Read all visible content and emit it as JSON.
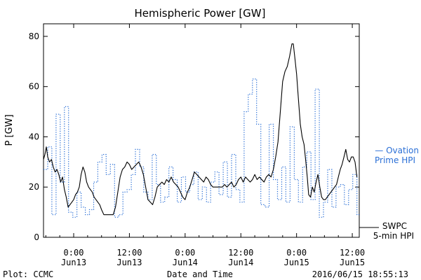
{
  "chart_data": {
    "type": "line",
    "title": "Hemispheric Power [GW]",
    "ylabel": "P [GW]",
    "xlabel": "Date and Time",
    "ylim": [
      0,
      85
    ],
    "yticks": [
      0,
      20,
      40,
      60,
      80
    ],
    "xlim": [
      -6.5,
      61.5
    ],
    "xticks": [
      {
        "x": 0,
        "line1": "0:00",
        "line2": "Jun13"
      },
      {
        "x": 12,
        "line1": "12:00",
        "line2": "Jun13"
      },
      {
        "x": 24,
        "line1": "0:00",
        "line2": "Jun14"
      },
      {
        "x": 36,
        "line1": "12:00",
        "line2": "Jun14"
      },
      {
        "x": 48,
        "line1": "0:00",
        "line2": "Jun15"
      },
      {
        "x": 60,
        "line1": "12:00",
        "line2": "Jun15"
      }
    ],
    "x_unit": "hours from 2016-06-13 00:00",
    "series": [
      {
        "name": "SWPC 5-min HPI",
        "label_line1": "SWPC",
        "label_line2": "5-min HPI",
        "color": "#000000",
        "style": "solid",
        "points": [
          [
            -6.5,
            31
          ],
          [
            -6.2,
            33
          ],
          [
            -5.9,
            36
          ],
          [
            -5.6,
            32
          ],
          [
            -5.2,
            30
          ],
          [
            -4.8,
            31
          ],
          [
            -4.4,
            28
          ],
          [
            -4.0,
            26
          ],
          [
            -3.6,
            27
          ],
          [
            -3.2,
            25
          ],
          [
            -2.8,
            22
          ],
          [
            -2.4,
            24
          ],
          [
            -2.0,
            19
          ],
          [
            -1.6,
            16
          ],
          [
            -1.2,
            12
          ],
          [
            -0.8,
            13
          ],
          [
            -0.4,
            14
          ],
          [
            0.0,
            15
          ],
          [
            0.4,
            17
          ],
          [
            0.8,
            18
          ],
          [
            1.2,
            20
          ],
          [
            1.6,
            25
          ],
          [
            2.0,
            28
          ],
          [
            2.4,
            26
          ],
          [
            2.8,
            22
          ],
          [
            3.2,
            20
          ],
          [
            3.6,
            19
          ],
          [
            4.0,
            18
          ],
          [
            4.4,
            16
          ],
          [
            4.8,
            15
          ],
          [
            5.2,
            14
          ],
          [
            5.6,
            13
          ],
          [
            6.0,
            11
          ],
          [
            6.5,
            9
          ],
          [
            7.0,
            9
          ],
          [
            7.5,
            9
          ],
          [
            8.0,
            9
          ],
          [
            8.5,
            9
          ],
          [
            9.0,
            12
          ],
          [
            9.5,
            18
          ],
          [
            10.0,
            24
          ],
          [
            10.5,
            27
          ],
          [
            11.0,
            28
          ],
          [
            11.5,
            30
          ],
          [
            12.0,
            29
          ],
          [
            12.5,
            27
          ],
          [
            13.0,
            28
          ],
          [
            13.5,
            29
          ],
          [
            14.0,
            30
          ],
          [
            14.5,
            28
          ],
          [
            15.0,
            25
          ],
          [
            15.5,
            20
          ],
          [
            16.0,
            15
          ],
          [
            16.5,
            14
          ],
          [
            17.0,
            13
          ],
          [
            17.5,
            16
          ],
          [
            18.0,
            20
          ],
          [
            18.5,
            21
          ],
          [
            19.0,
            22
          ],
          [
            19.5,
            21
          ],
          [
            20.0,
            23
          ],
          [
            20.5,
            22
          ],
          [
            21.0,
            24
          ],
          [
            21.5,
            22
          ],
          [
            22.0,
            21
          ],
          [
            22.5,
            20
          ],
          [
            23.0,
            18
          ],
          [
            23.5,
            16
          ],
          [
            24.0,
            15
          ],
          [
            24.5,
            18
          ],
          [
            25.0,
            20
          ],
          [
            25.5,
            23
          ],
          [
            26.0,
            26
          ],
          [
            26.5,
            25
          ],
          [
            27.0,
            24
          ],
          [
            27.5,
            23
          ],
          [
            28.0,
            22
          ],
          [
            28.5,
            24
          ],
          [
            29.0,
            23
          ],
          [
            29.5,
            21
          ],
          [
            30.0,
            20
          ],
          [
            30.5,
            20
          ],
          [
            31.0,
            20
          ],
          [
            31.5,
            20
          ],
          [
            32.0,
            20
          ],
          [
            32.5,
            21
          ],
          [
            33.0,
            20
          ],
          [
            33.5,
            21
          ],
          [
            34.0,
            22
          ],
          [
            34.5,
            20
          ],
          [
            35.0,
            21
          ],
          [
            35.5,
            23
          ],
          [
            36.0,
            24
          ],
          [
            36.5,
            22
          ],
          [
            37.0,
            24
          ],
          [
            37.5,
            23
          ],
          [
            38.0,
            22
          ],
          [
            38.5,
            23
          ],
          [
            39.0,
            25
          ],
          [
            39.5,
            23
          ],
          [
            40.0,
            24
          ],
          [
            40.5,
            23
          ],
          [
            41.0,
            22
          ],
          [
            41.5,
            24
          ],
          [
            42.0,
            25
          ],
          [
            42.5,
            24
          ],
          [
            43.0,
            27
          ],
          [
            43.5,
            32
          ],
          [
            44.0,
            38
          ],
          [
            44.5,
            50
          ],
          [
            45.0,
            62
          ],
          [
            45.5,
            66
          ],
          [
            46.0,
            68
          ],
          [
            46.5,
            72
          ],
          [
            47.0,
            77
          ],
          [
            47.3,
            77
          ],
          [
            47.6,
            72
          ],
          [
            48.0,
            65
          ],
          [
            48.4,
            55
          ],
          [
            48.8,
            45
          ],
          [
            49.2,
            40
          ],
          [
            49.6,
            37
          ],
          [
            50.0,
            30
          ],
          [
            50.3,
            24
          ],
          [
            50.6,
            17
          ],
          [
            51.0,
            16
          ],
          [
            51.4,
            20
          ],
          [
            51.8,
            18
          ],
          [
            52.2,
            22
          ],
          [
            52.6,
            25
          ],
          [
            53.0,
            20
          ],
          [
            53.4,
            16
          ],
          [
            53.8,
            15
          ],
          [
            54.2,
            15
          ],
          [
            54.6,
            16
          ],
          [
            55.0,
            17
          ],
          [
            55.4,
            18
          ],
          [
            55.8,
            19
          ],
          [
            56.2,
            20
          ],
          [
            56.6,
            21
          ],
          [
            57.0,
            24
          ],
          [
            57.4,
            27
          ],
          [
            57.8,
            29
          ],
          [
            58.2,
            32
          ],
          [
            58.6,
            35
          ],
          [
            59.0,
            31
          ],
          [
            59.4,
            30
          ],
          [
            59.8,
            32
          ],
          [
            60.2,
            32
          ],
          [
            60.6,
            30
          ],
          [
            61.0,
            24
          ]
        ]
      },
      {
        "name": "Ovation Prime HPI",
        "label_line1": "— Ovation",
        "label_line2": "Prime HPI",
        "color": "#2a6fd6",
        "style": "dotted-step",
        "step_width_hours": 0.9,
        "values": [
          [
            -6.5,
            27
          ],
          [
            -5.6,
            36
          ],
          [
            -4.7,
            9
          ],
          [
            -3.8,
            49
          ],
          [
            -2.9,
            22
          ],
          [
            -2.0,
            52
          ],
          [
            -1.1,
            10
          ],
          [
            -0.2,
            8
          ],
          [
            0.7,
            18
          ],
          [
            1.6,
            12
          ],
          [
            2.5,
            9
          ],
          [
            3.4,
            11
          ],
          [
            4.3,
            22
          ],
          [
            5.2,
            30
          ],
          [
            6.1,
            33
          ],
          [
            7.0,
            25
          ],
          [
            7.9,
            29
          ],
          [
            8.8,
            8
          ],
          [
            9.7,
            9
          ],
          [
            10.6,
            18
          ],
          [
            11.5,
            19
          ],
          [
            12.4,
            25
          ],
          [
            13.3,
            35
          ],
          [
            14.2,
            28
          ],
          [
            15.1,
            18
          ],
          [
            16.0,
            15
          ],
          [
            16.9,
            33
          ],
          [
            17.8,
            21
          ],
          [
            18.7,
            14
          ],
          [
            19.6,
            16
          ],
          [
            20.5,
            28
          ],
          [
            21.4,
            23
          ],
          [
            22.3,
            14
          ],
          [
            23.2,
            24
          ],
          [
            24.1,
            18
          ],
          [
            25.0,
            21
          ],
          [
            25.9,
            26
          ],
          [
            26.8,
            15
          ],
          [
            27.7,
            20
          ],
          [
            28.6,
            14
          ],
          [
            29.5,
            22
          ],
          [
            30.4,
            26
          ],
          [
            31.3,
            17
          ],
          [
            32.2,
            30
          ],
          [
            33.1,
            16
          ],
          [
            34.0,
            33
          ],
          [
            34.9,
            19
          ],
          [
            35.8,
            14
          ],
          [
            36.7,
            50
          ],
          [
            37.6,
            57
          ],
          [
            38.5,
            63
          ],
          [
            39.4,
            45
          ],
          [
            40.3,
            13
          ],
          [
            41.2,
            12
          ],
          [
            42.1,
            45
          ],
          [
            43.0,
            23
          ],
          [
            43.9,
            15
          ],
          [
            44.8,
            28
          ],
          [
            45.7,
            14
          ],
          [
            46.6,
            44
          ],
          [
            47.5,
            23
          ],
          [
            48.4,
            14
          ],
          [
            49.3,
            28
          ],
          [
            50.2,
            34
          ],
          [
            51.1,
            15
          ],
          [
            52.0,
            59
          ],
          [
            52.9,
            8
          ],
          [
            53.8,
            14
          ],
          [
            54.7,
            27
          ],
          [
            55.6,
            12
          ],
          [
            56.5,
            20
          ],
          [
            57.4,
            21
          ],
          [
            58.3,
            13
          ],
          [
            59.2,
            19
          ],
          [
            60.1,
            25
          ],
          [
            61.0,
            9
          ]
        ]
      }
    ],
    "legend": [
      {
        "series": "Ovation Prime HPI",
        "placement": "right-middle"
      },
      {
        "series": "SWPC 5-min HPI",
        "placement": "right-bottom"
      }
    ],
    "grid": false
  },
  "footer": {
    "plot_credit": "Plot: CCMC",
    "timestamp": "2016/06/15 18:55:13"
  }
}
